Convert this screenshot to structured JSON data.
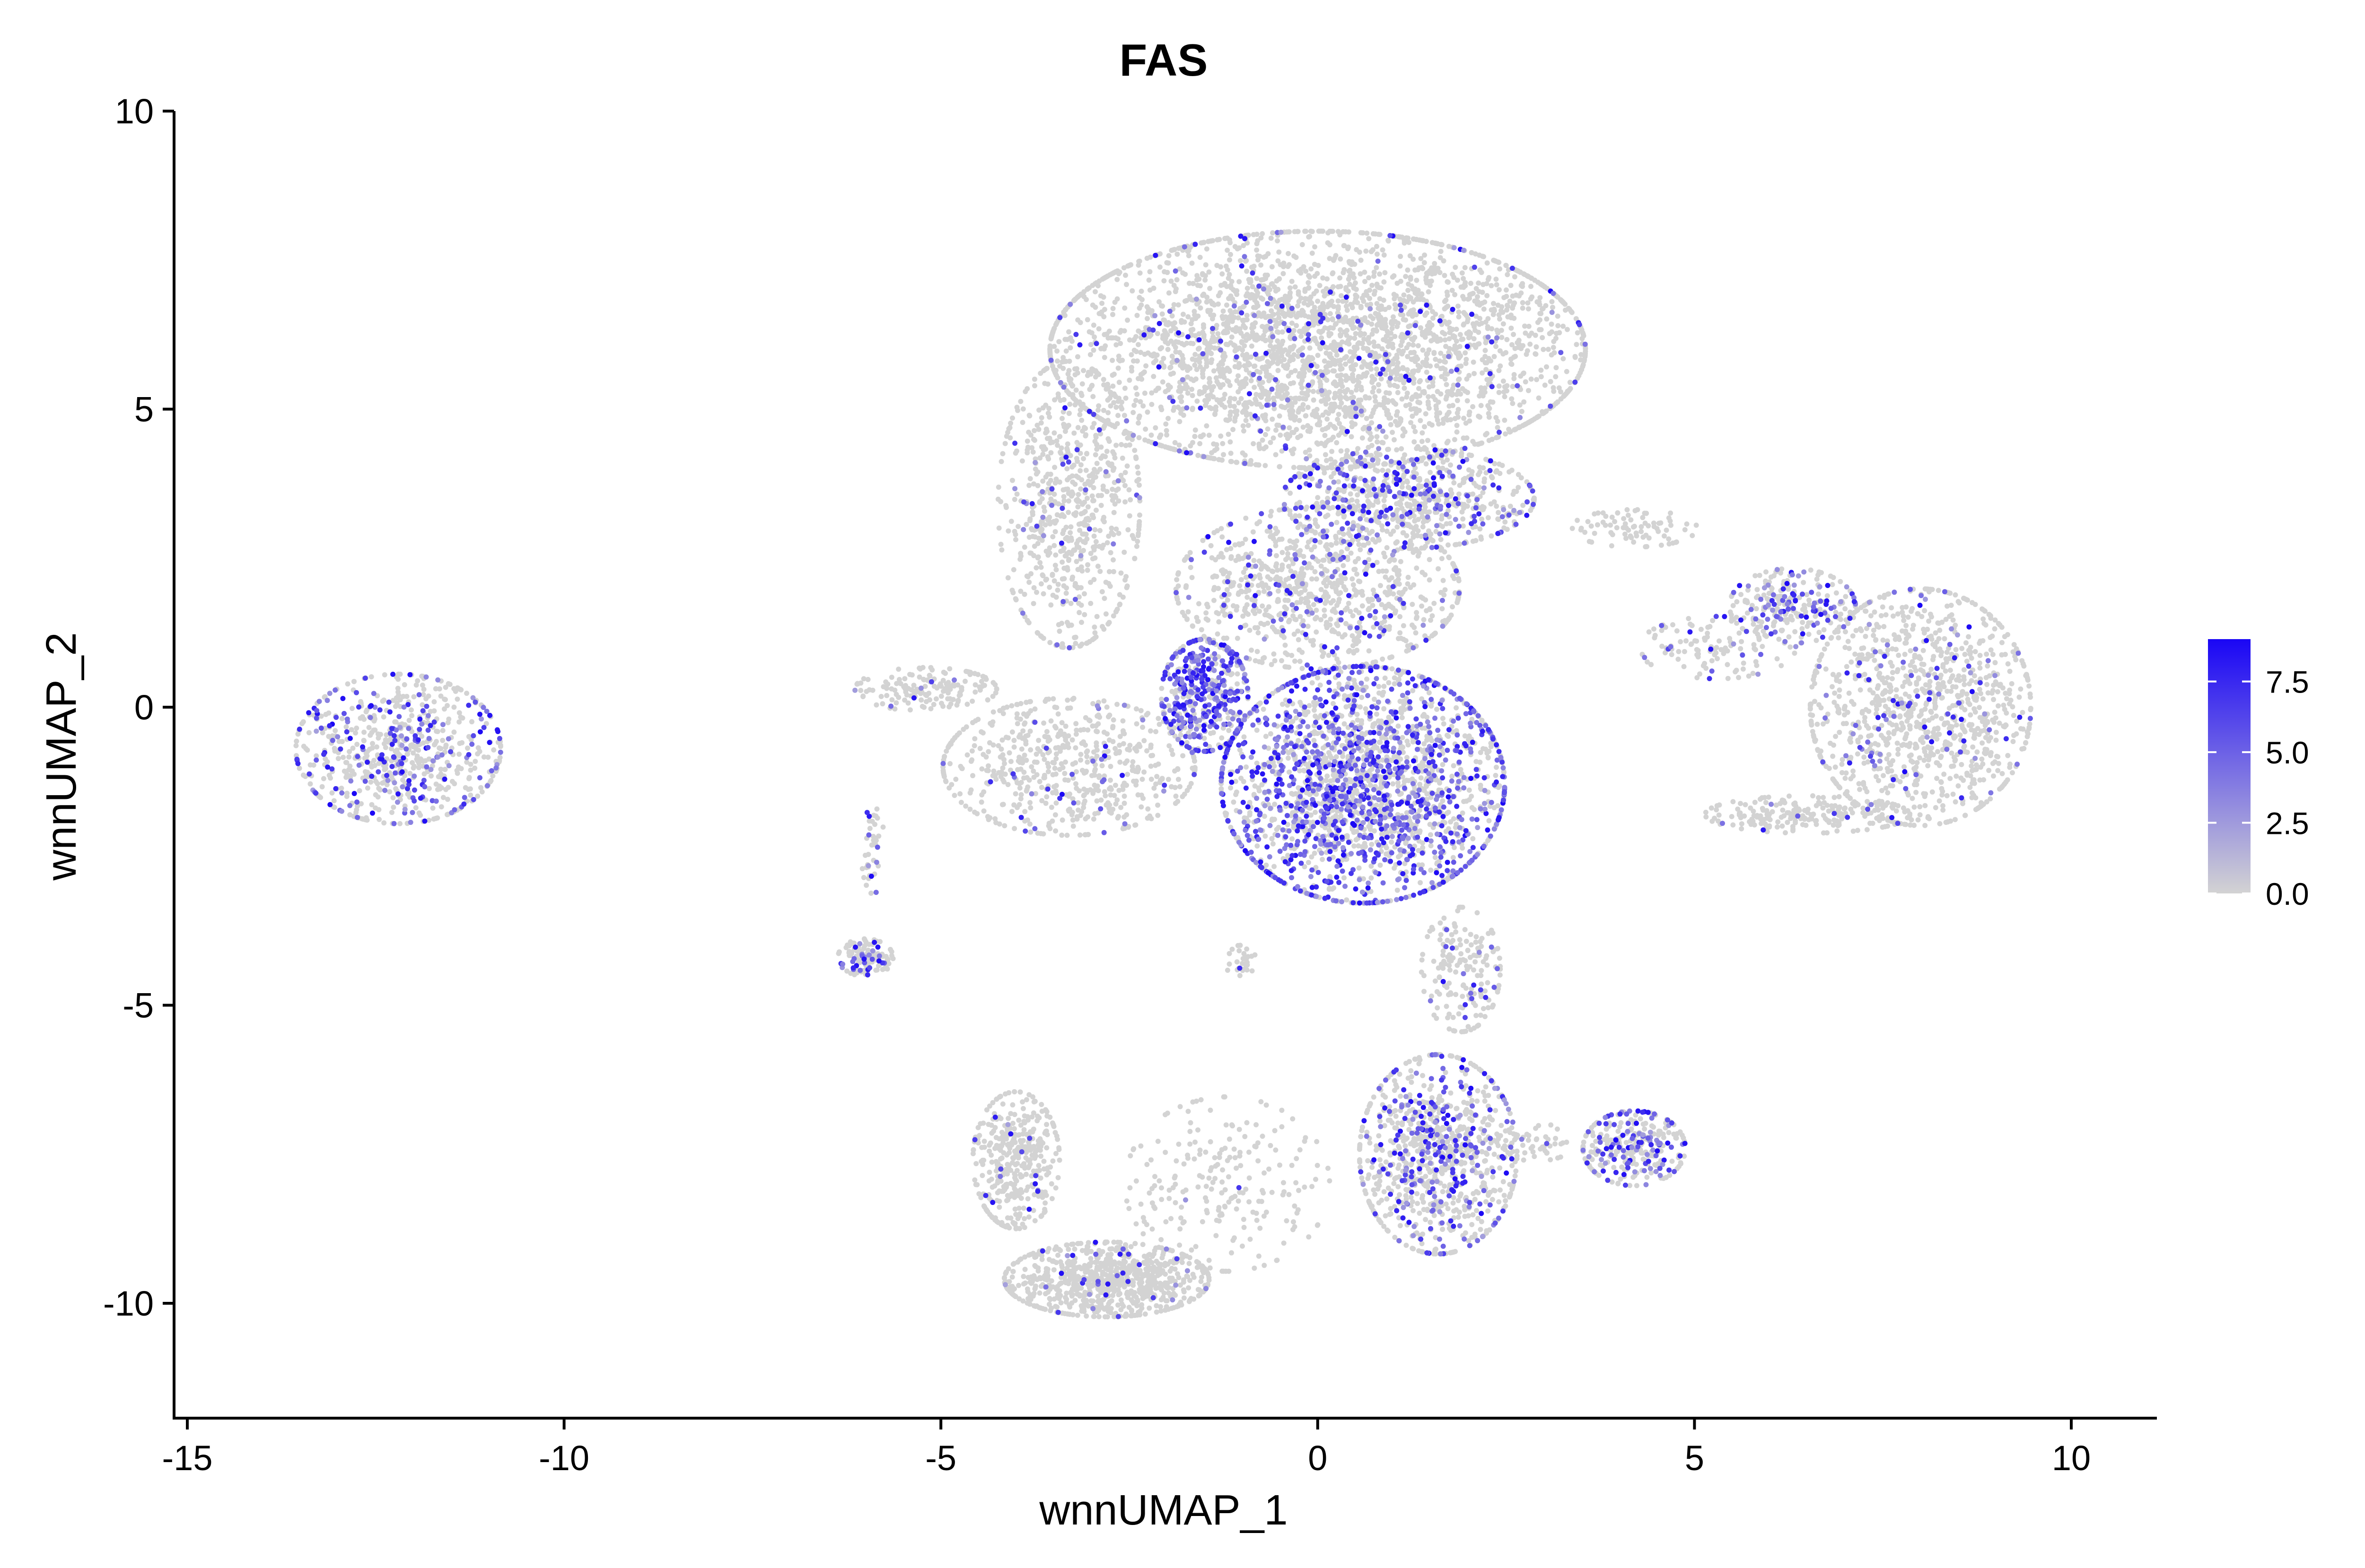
{
  "chart_data": {
    "type": "scatter",
    "title": "FAS",
    "xlabel": "wnnUMAP_1",
    "ylabel": "wnnUMAP_2",
    "xlim": [
      -15.2,
      11.2
    ],
    "ylim": [
      -12,
      10
    ],
    "xticks": [
      -15,
      -10,
      -5,
      0,
      5,
      10
    ],
    "xtick_labels": [
      "-15",
      "-10",
      "-5",
      "0",
      "5",
      "10"
    ],
    "yticks": [
      -10,
      -5,
      0,
      5,
      10
    ],
    "ytick_labels": [
      "-10",
      "-5",
      "0",
      "5",
      "10"
    ],
    "grid": false,
    "legend": {
      "placement": "right",
      "type": "continuous colorbar",
      "range": [
        0,
        9
      ],
      "ticks": [
        0,
        2.5,
        5,
        7.5
      ],
      "tick_labels": [
        "0.0",
        "2.5",
        "5.0",
        "7.5"
      ],
      "low_color": "#d3d3d3",
      "high_color": "#1a06f5"
    },
    "point_color_low": "#d3d3d3",
    "point_color_high": "#1a06f5",
    "clusters": [
      {
        "cx": -12.2,
        "cy": -0.7,
        "rx": 1.3,
        "ry": 1.2,
        "n": 700,
        "expr": 0.25
      },
      {
        "cx": 0.0,
        "cy": 6.0,
        "rx": 3.4,
        "ry": 1.9,
        "n": 3200,
        "expr": 0.05
      },
      {
        "cx": -3.3,
        "cy": 3.4,
        "rx": 0.9,
        "ry": 2.3,
        "n": 700,
        "expr": 0.04
      },
      {
        "cx": 1.2,
        "cy": 3.5,
        "rx": 1.6,
        "ry": 0.8,
        "n": 700,
        "expr": 0.25
      },
      {
        "cx": -1.5,
        "cy": 0.2,
        "rx": 0.55,
        "ry": 0.9,
        "n": 450,
        "expr": 0.6
      },
      {
        "cx": 0.6,
        "cy": -1.3,
        "rx": 1.8,
        "ry": 1.9,
        "n": 2300,
        "expr": 0.45
      },
      {
        "cx": 0.0,
        "cy": 2.0,
        "rx": 1.8,
        "ry": 1.3,
        "n": 900,
        "expr": 0.12
      },
      {
        "cx": -3.3,
        "cy": -1.0,
        "rx": 1.6,
        "ry": 1.1,
        "n": 600,
        "expr": 0.05
      },
      {
        "cx": -5.2,
        "cy": 0.3,
        "rx": 0.9,
        "ry": 0.35,
        "n": 160,
        "expr": 0.02
      },
      {
        "cx": -6.0,
        "cy": -4.2,
        "rx": 0.35,
        "ry": 0.3,
        "n": 120,
        "expr": 0.2
      },
      {
        "cx": -5.9,
        "cy": -2.4,
        "rx": 0.15,
        "ry": 0.7,
        "n": 40,
        "expr": 0.15
      },
      {
        "cx": 8.0,
        "cy": 0.0,
        "rx": 1.4,
        "ry": 1.9,
        "n": 1100,
        "expr": 0.1
      },
      {
        "cx": 6.3,
        "cy": 1.7,
        "rx": 0.8,
        "ry": 0.6,
        "n": 250,
        "expr": 0.3
      },
      {
        "cx": 6.5,
        "cy": -1.8,
        "rx": 1.3,
        "ry": 0.3,
        "n": 200,
        "expr": 0.05
      },
      {
        "cx": 5.3,
        "cy": 1.0,
        "rx": 1.0,
        "ry": 0.5,
        "n": 120,
        "expr": 0.15
      },
      {
        "cx": 4.2,
        "cy": 3.0,
        "rx": 0.8,
        "ry": 0.3,
        "n": 80,
        "expr": 0.0
      },
      {
        "cx": 1.9,
        "cy": -4.4,
        "rx": 0.5,
        "ry": 1.0,
        "n": 180,
        "expr": 0.08
      },
      {
        "cx": 1.6,
        "cy": -7.5,
        "rx": 1.0,
        "ry": 1.6,
        "n": 900,
        "expr": 0.25
      },
      {
        "cx": 4.2,
        "cy": -7.4,
        "rx": 0.65,
        "ry": 0.6,
        "n": 300,
        "expr": 0.3
      },
      {
        "cx": 2.9,
        "cy": -7.3,
        "rx": 0.5,
        "ry": 0.3,
        "n": 50,
        "expr": 0.05
      },
      {
        "cx": -4.0,
        "cy": -7.6,
        "rx": 0.55,
        "ry": 1.1,
        "n": 400,
        "expr": 0.05
      },
      {
        "cx": -2.8,
        "cy": -9.6,
        "rx": 1.3,
        "ry": 0.6,
        "n": 800,
        "expr": 0.05
      },
      {
        "cx": -1.2,
        "cy": -8.0,
        "rx": 1.3,
        "ry": 1.4,
        "n": 220,
        "expr": 0.02
      },
      {
        "cx": -1.0,
        "cy": -4.3,
        "rx": 0.2,
        "ry": 0.3,
        "n": 30,
        "expr": 0.05
      }
    ]
  }
}
